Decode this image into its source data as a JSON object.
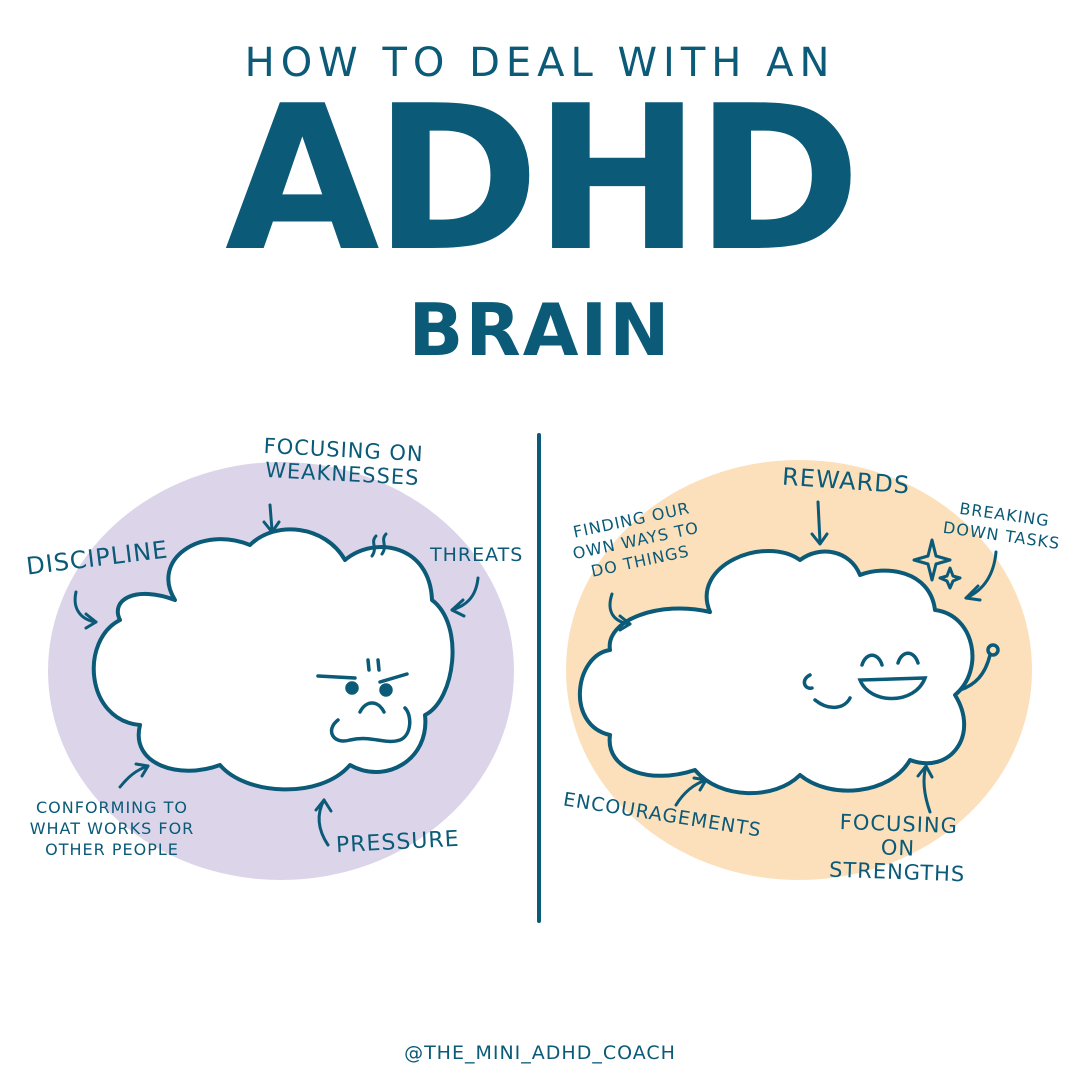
{
  "title": {
    "top": "HOW TO DEAL WITH AN",
    "main": "ADHD",
    "sub": "BRAIN"
  },
  "left_panel": {
    "labels": {
      "focusing_weaknesses": "FOCUSING ON WEAKNESSES",
      "discipline": "DISCIPLINE",
      "threats": "THREATS",
      "conforming": "CONFORMING TO WHAT WORKS FOR OTHER PEOPLE",
      "pressure": "PRESSURE"
    },
    "background_color": "#dcd5ea"
  },
  "right_panel": {
    "labels": {
      "rewards": "REWARDS",
      "finding_ways": "FINDING OUR OWN WAYS TO DO THINGS",
      "breaking_down": "BREAKING DOWN TASKS",
      "encouragements": "ENCOURAGEMENTS",
      "focusing_strengths": "FOCUSING ON STRENGTHS"
    },
    "background_color": "#fbe0bb"
  },
  "footer": {
    "handle": "@THE_MINI_ADHD_COACH"
  },
  "colors": {
    "ink": "#0a5a78"
  }
}
